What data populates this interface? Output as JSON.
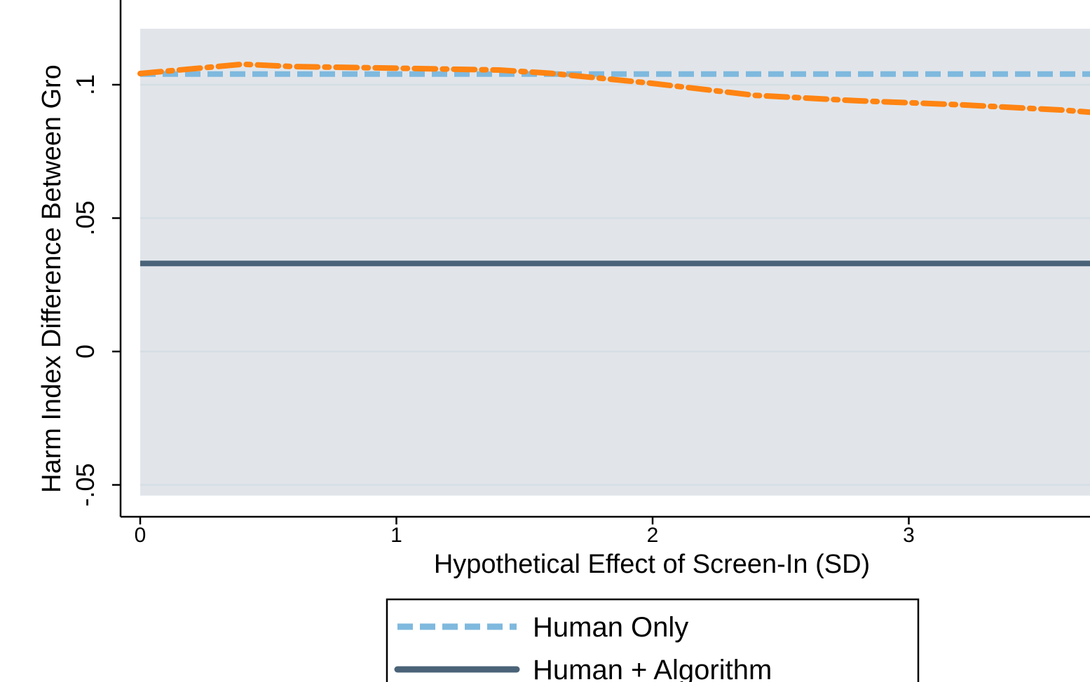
{
  "chart_data": {
    "type": "line",
    "title": "",
    "xlabel": "Hypothetical Effect of Screen-In (SD)",
    "ylabel": "Harm Index Difference Between Gro",
    "xlim": [
      -0.07,
      3.8
    ],
    "ylim": [
      -0.0608,
      0.1315
    ],
    "x_ticks": [
      0,
      1,
      2,
      3
    ],
    "x_tick_labels": [
      "0",
      "1",
      "2",
      "3"
    ],
    "y_ticks": [
      -0.05,
      0,
      0.05,
      0.1
    ],
    "y_tick_labels": [
      "-.05",
      "0",
      ".05",
      ".1"
    ],
    "grid": true,
    "plot_region": {
      "x": [
        0,
        3.8
      ],
      "y": [
        -0.054,
        0.121
      ]
    },
    "legend_position": "bottom",
    "series": [
      {
        "name": "Human Only",
        "style": "dashed",
        "color": "#7fb9de",
        "x": [
          0,
          3.8
        ],
        "y": [
          0.104,
          0.104
        ]
      },
      {
        "name": "Human + Algorithm",
        "style": "solid",
        "color": "#4a6378",
        "x": [
          0,
          3.8
        ],
        "y": [
          0.033,
          0.033
        ]
      },
      {
        "style": "dash-dot",
        "color": "#ff8412",
        "x": [
          0,
          0.4,
          0.6,
          1.0,
          1.4,
          1.6,
          2.0,
          2.4,
          2.8,
          3.2,
          3.6,
          3.8
        ],
        "y": [
          0.1042,
          0.1077,
          0.1068,
          0.1062,
          0.1055,
          0.1043,
          0.1005,
          0.096,
          0.094,
          0.0925,
          0.0905,
          0.089
        ]
      }
    ]
  },
  "legend": {
    "items": [
      {
        "label": "Human Only",
        "style": "dashed",
        "color": "#7fb9de"
      },
      {
        "label": "Human + Algorithm",
        "style": "solid",
        "color": "#4a6378"
      }
    ]
  },
  "colors": {
    "plot_background": "#e1e5ea",
    "gridline": "#d4dee4",
    "axis": "#000000"
  }
}
